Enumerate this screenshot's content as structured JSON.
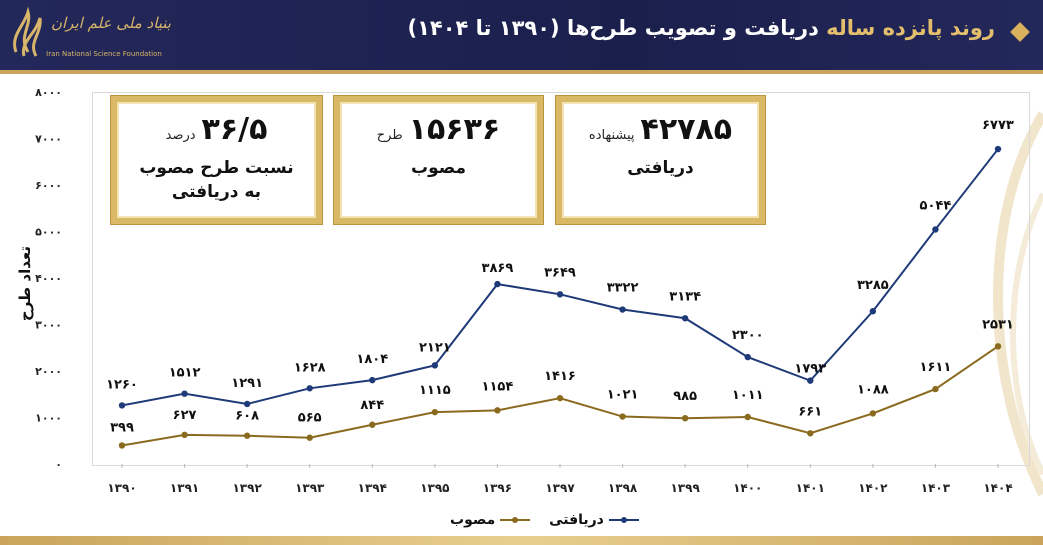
{
  "header": {
    "title_gold": "روند پانزده ساله",
    "title_white": "دریافت و تصویب طرح‌ها (۱۳۹۰ تا ۱۴۰۴)",
    "logo_fa": "بنیاد ملی علم ایران",
    "logo_en": "Iran National Science Foundation",
    "accent_color": "#c9a45a",
    "header_color": "#1b1f4c"
  },
  "kpis": [
    {
      "value": "۳۶/۵",
      "unit": "درصد",
      "line1": "نسبت طرح مصوب",
      "line2": "به دریافتی"
    },
    {
      "value": "۱۵۶۳۶",
      "unit": "طرح",
      "line1": "مصوب",
      "line2": ""
    },
    {
      "value": "۴۲۷۸۵",
      "unit": "پیشنهاده",
      "line1": "دریافتی",
      "line2": ""
    }
  ],
  "chart_data": {
    "type": "line",
    "title": "روند پانزده ساله دریافت و تصویب طرح‌ها (۱۳۹۰ تا ۱۴۰۴)",
    "xlabel": "",
    "ylabel": "تعداد طرح",
    "ylim": [
      0,
      8000
    ],
    "yticks": [
      0,
      1000,
      2000,
      3000,
      4000,
      5000,
      6000,
      7000,
      8000
    ],
    "ytick_labels": [
      "۰",
      "۱۰۰۰",
      "۲۰۰۰",
      "۳۰۰۰",
      "۴۰۰۰",
      "۵۰۰۰",
      "۶۰۰۰",
      "۷۰۰۰",
      "۸۰۰۰"
    ],
    "grid": false,
    "legend_position": "bottom",
    "categories": [
      "۱۳۹۰",
      "۱۳۹۱",
      "۱۳۹۲",
      "۱۳۹۳",
      "۱۳۹۴",
      "۱۳۹۵",
      "۱۳۹۶",
      "۱۳۹۷",
      "۱۳۹۸",
      "۱۳۹۹",
      "۱۴۰۰",
      "۱۴۰۱",
      "۱۴۰۲",
      "۱۴۰۳",
      "۱۴۰۴"
    ],
    "series": [
      {
        "name": "دریافتی",
        "color": "#1f3a78",
        "values": [
          1260,
          1512,
          1291,
          1628,
          1804,
          2121,
          3869,
          3649,
          3322,
          3134,
          2300,
          1793,
          3285,
          5044,
          6773
        ],
        "labels": [
          "۱۲۶۰",
          "۱۵۱۲",
          "۱۲۹۱",
          "۱۶۲۸",
          "۱۸۰۴",
          "۲۱۲۱",
          "۳۸۶۹",
          "۳۶۴۹",
          "۳۳۲۲",
          "۳۱۳۴",
          "۲۳۰۰",
          "۱۷۹۳",
          "۳۲۸۵",
          "۵۰۴۴",
          "۶۷۷۳"
        ]
      },
      {
        "name": "مصوب",
        "color": "#8a6a1e",
        "values": [
          399,
          627,
          608,
          565,
          844,
          1115,
          1154,
          1416,
          1021,
          985,
          1011,
          661,
          1088,
          1611,
          2531
        ],
        "labels": [
          "۳۹۹",
          "۶۲۷",
          "۶۰۸",
          "۵۶۵",
          "۸۴۴",
          "۱۱۱۵",
          "۱۱۵۴",
          "۱۴۱۶",
          "۱۰۲۱",
          "۹۸۵",
          "۱۰۱۱",
          "۶۶۱",
          "۱۰۸۸",
          "۱۶۱۱",
          "۲۵۳۱"
        ]
      }
    ]
  }
}
